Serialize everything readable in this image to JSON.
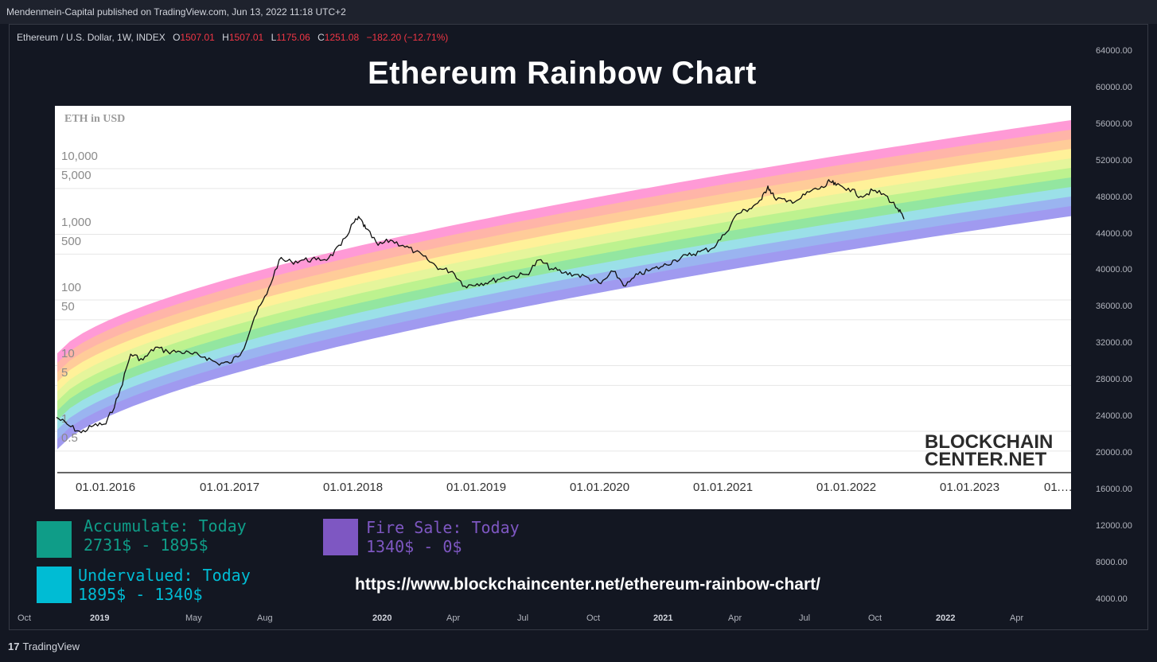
{
  "publisher": "Mendenmein-Capital published on TradingView.com, Jun 13, 2022 11:18 UTC+2",
  "legend": {
    "symbol": "Ethereum / U.S. Dollar, 1W, INDEX",
    "o_label": "O",
    "o_value": "1507.01",
    "h_label": "H",
    "h_value": "1507.01",
    "l_label": "L",
    "l_value": "1175.06",
    "c_label": "C",
    "c_value": "1251.08",
    "change": "−182.20 (−12.71%)"
  },
  "title": "Ethereum Rainbow Chart",
  "price_axis": [
    "64000.00",
    "60000.00",
    "56000.00",
    "52000.00",
    "48000.00",
    "44000.00",
    "40000.00",
    "36000.00",
    "32000.00",
    "28000.00",
    "24000.00",
    "20000.00",
    "16000.00",
    "12000.00",
    "8000.00",
    "4000.00"
  ],
  "time_axis": [
    {
      "label": "Oct",
      "bold": false
    },
    {
      "label": "2019",
      "bold": true
    },
    {
      "label": "May",
      "bold": false
    },
    {
      "label": "Aug",
      "bold": false
    },
    {
      "label": "2020",
      "bold": true
    },
    {
      "label": "Apr",
      "bold": false
    },
    {
      "label": "Jul",
      "bold": false
    },
    {
      "label": "Oct",
      "bold": false
    },
    {
      "label": "2021",
      "bold": true
    },
    {
      "label": "Apr",
      "bold": false
    },
    {
      "label": "Jul",
      "bold": false
    },
    {
      "label": "Oct",
      "bold": false
    },
    {
      "label": "2022",
      "bold": true
    },
    {
      "label": "Apr",
      "bold": false
    }
  ],
  "colors": {
    "bands": [
      "#ff9ad6",
      "#ffb5a8",
      "#ffcc99",
      "#fff199",
      "#e5f59b",
      "#bdf28f",
      "#93e6a0",
      "#9be0e8",
      "#9ab4f0",
      "#a09af0"
    ],
    "accumulate": "#0f9d88",
    "undervalued": "#00bcd4",
    "fire_sale": "#7e57c2"
  },
  "chart_data": {
    "type": "line",
    "title": "ETH in USD",
    "scale": "log",
    "y_ticks": [
      "10,000",
      "5,000",
      "1,000",
      "500",
      "100",
      "50",
      "10",
      "5",
      "1",
      "0.5"
    ],
    "x_ticks": [
      "01.01.2016",
      "01.01.2017",
      "01.01.2018",
      "01.01.2019",
      "01.01.2020",
      "01.01.2021",
      "01.01.2022",
      "01.01.2023",
      "01.…"
    ],
    "bands": 10,
    "series": [
      {
        "x": [
          "2015.60",
          "2015.70",
          "2015.80",
          "2015.90",
          "2016.00",
          "2016.10",
          "2016.20",
          "2016.30",
          "2016.40",
          "2016.50",
          "2016.60",
          "2016.70",
          "2016.80",
          "2016.90",
          "2017.00",
          "2017.10",
          "2017.20",
          "2017.30",
          "2017.40",
          "2017.50",
          "2017.60",
          "2017.70",
          "2017.80",
          "2017.90",
          "2018.00",
          "2018.05",
          "2018.10",
          "2018.20",
          "2018.30",
          "2018.40",
          "2018.50",
          "2018.60",
          "2018.70",
          "2018.80",
          "2018.90",
          "2019.00",
          "2019.10",
          "2019.20",
          "2019.30",
          "2019.40",
          "2019.50",
          "2019.60",
          "2019.70",
          "2019.80",
          "2019.90",
          "2020.00",
          "2020.10",
          "2020.20",
          "2020.30",
          "2020.40",
          "2020.50",
          "2020.60",
          "2020.70",
          "2020.80",
          "2020.90",
          "2021.00",
          "2021.10",
          "2021.20",
          "2021.30",
          "2021.35",
          "2021.40",
          "2021.50",
          "2021.60",
          "2021.70",
          "2021.80",
          "2021.85",
          "2021.90",
          "2022.00",
          "2022.10",
          "2022.20",
          "2022.30",
          "2022.40",
          "2022.45"
        ],
        "values": [
          1.2,
          0.9,
          0.7,
          0.9,
          0.95,
          2.5,
          11,
          9,
          14,
          12,
          12,
          11,
          10,
          8,
          8,
          12,
          40,
          90,
          300,
          280,
          300,
          300,
          320,
          500,
          1100,
          1300,
          900,
          500,
          600,
          500,
          400,
          300,
          220,
          200,
          120,
          130,
          140,
          160,
          170,
          180,
          300,
          220,
          190,
          180,
          160,
          130,
          200,
          120,
          180,
          210,
          240,
          300,
          350,
          400,
          450,
          730,
          1500,
          1800,
          2500,
          4000,
          2700,
          2300,
          2500,
          3400,
          3800,
          4700,
          4100,
          3700,
          2800,
          3400,
          2900,
          1800,
          1250
        ]
      }
    ]
  },
  "watermark": {
    "line1": "BLOCKCHAIN",
    "line2": "CENTER.NET"
  },
  "categories": [
    {
      "name": "Accumulate: Today",
      "range": "2731$ - 1895$"
    },
    {
      "name": "Fire Sale: Today",
      "range": "1340$ - 0$"
    },
    {
      "name": "Undervalued: Today",
      "range": "1895$ - 1340$"
    }
  ],
  "url": "https://www.blockchaincenter.net/ethereum-rainbow-chart/",
  "footer": {
    "logo": "17",
    "brand": "TradingView"
  }
}
